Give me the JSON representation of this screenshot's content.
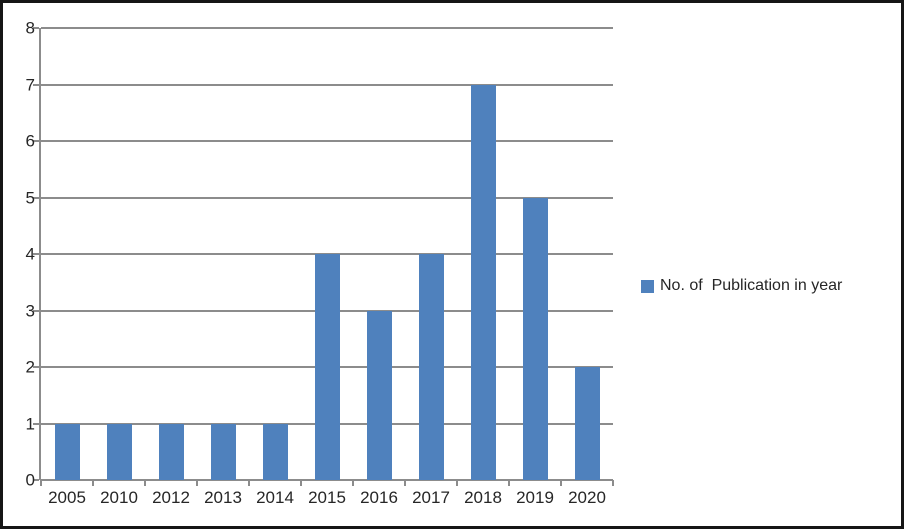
{
  "chart_data": {
    "type": "bar",
    "title": "",
    "categories": [
      "2005",
      "2010",
      "2012",
      "2013",
      "2014",
      "2015",
      "2016",
      "2017",
      "2018",
      "2019",
      "2020"
    ],
    "values": [
      1,
      1,
      1,
      1,
      1,
      4,
      3,
      4,
      7,
      5,
      2
    ],
    "series": [
      {
        "name": "No. of  Publication in year",
        "values": [
          1,
          1,
          1,
          1,
          1,
          4,
          3,
          4,
          7,
          5,
          2
        ]
      }
    ],
    "xlabel": "",
    "ylabel": "",
    "ylim": [
      0,
      8
    ],
    "yticks": [
      0,
      1,
      2,
      3,
      4,
      5,
      6,
      7,
      8
    ],
    "grid": true,
    "legend_position": "right",
    "legend": {
      "label": "No. of  Publication in year"
    },
    "colors": {
      "bar": "#4F81BD",
      "gridline": "#8C8C8C",
      "axis": "#8C8C8C",
      "text": "#262626",
      "border": "#161616",
      "background": "#FFFFFF"
    }
  }
}
